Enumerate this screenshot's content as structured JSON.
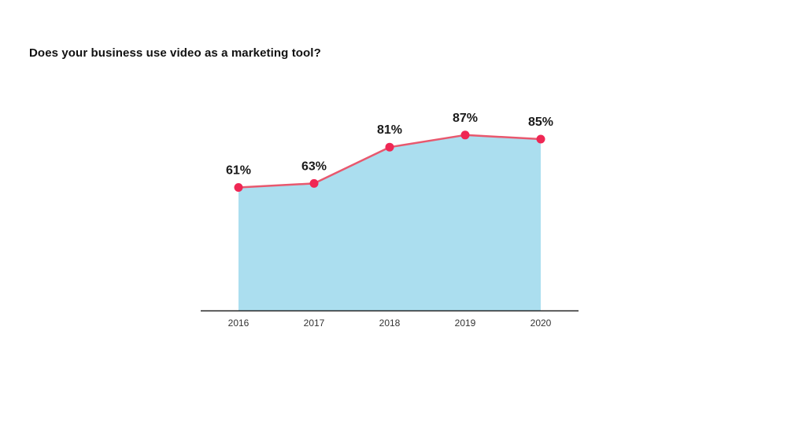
{
  "chart_data": {
    "type": "area",
    "title": "Does your business use video as a marketing tool?",
    "xlabel": "",
    "ylabel": "",
    "categories": [
      "2016",
      "2017",
      "2018",
      "2019",
      "2020"
    ],
    "values": [
      61,
      63,
      81,
      87,
      85
    ],
    "data_labels": [
      "61%",
      "63%",
      "81%",
      "87%",
      "85%"
    ],
    "unit": "%",
    "grid": false,
    "legend": "none",
    "colors": {
      "area_fill": "#abdeef",
      "line": "#e8586e",
      "marker": "#ef2754",
      "axis": "#222222"
    }
  }
}
